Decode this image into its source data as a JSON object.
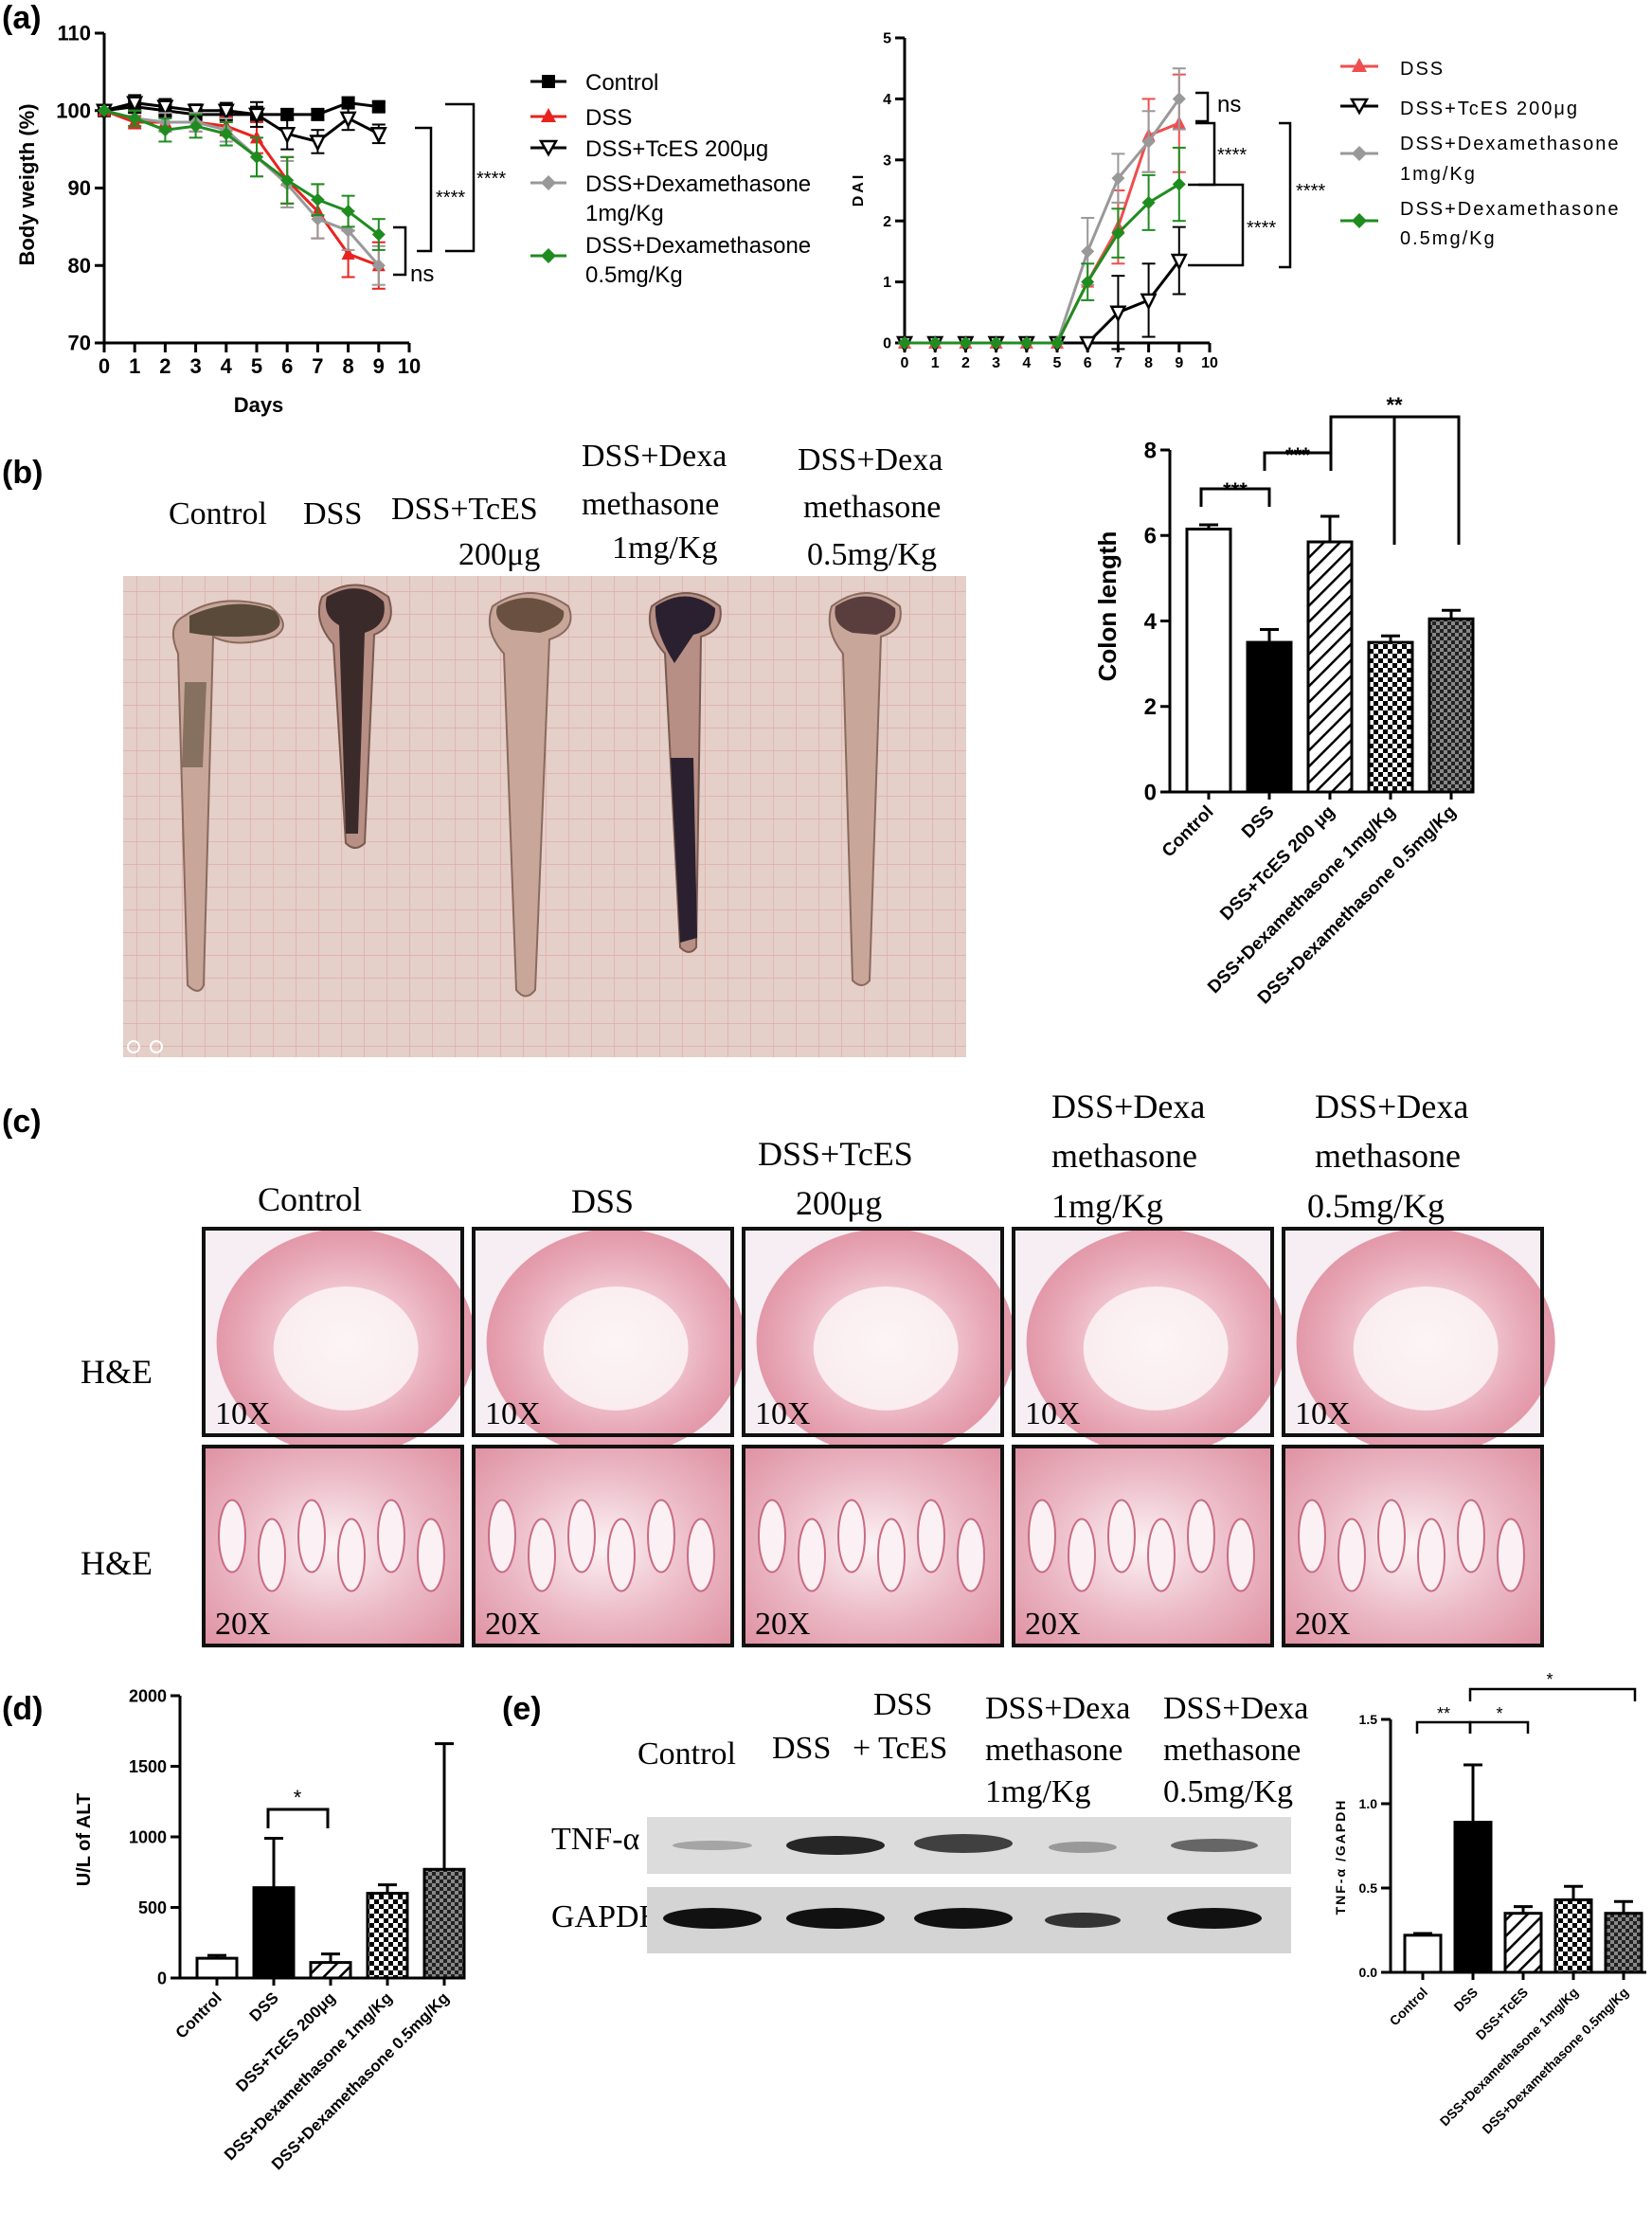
{
  "panels": {
    "a": "(a)",
    "b": "(b)",
    "c": "(c)",
    "d": "(d)",
    "e": "(e)"
  },
  "bw": {
    "ylabel": "Body weigth (%)",
    "xlabel": "Days",
    "yticks": [
      "70",
      "80",
      "90",
      "100",
      "110"
    ],
    "xticks": [
      "0",
      "1",
      "2",
      "3",
      "4",
      "5",
      "6",
      "7",
      "8",
      "9",
      "10"
    ],
    "legend": [
      "Control",
      "DSS",
      "DSS+TcES 200μg",
      "DSS+Dexamethasone",
      "1mg/Kg",
      "DSS+Dexamethasone",
      "0.5mg/Kg"
    ],
    "sig": [
      "****",
      "****",
      "ns"
    ]
  },
  "dai": {
    "ylabel": "DAI",
    "yticks": [
      "0",
      "1",
      "2",
      "3",
      "4",
      "5"
    ],
    "xticks": [
      "0",
      "1",
      "2",
      "3",
      "4",
      "5",
      "6",
      "7",
      "8",
      "9",
      "10"
    ],
    "legend": [
      "DSS",
      "DSS+TcES 200μg",
      "DSS+Dexamethasone",
      "1mg/Kg",
      "DSS+Dexamethasone",
      "0.5mg/Kg"
    ],
    "sig": [
      "ns",
      "****",
      "****",
      "****"
    ]
  },
  "photo_labels": {
    "b": [
      "Control",
      "DSS",
      "DSS+TcES",
      "200μg",
      "DSS+Dexa",
      "methasone",
      "1mg/Kg",
      "DSS+Dexa",
      "methasone",
      "0.5mg/Kg"
    ],
    "c": [
      "Control",
      "DSS",
      "DSS+TcES",
      "200μg",
      "DSS+Dexa",
      "methasone",
      "1mg/Kg",
      "DSS+Dexa",
      "methasone",
      "0.5mg/Kg"
    ],
    "he": "H&E",
    "mag10": "10X",
    "mag20": "20X",
    "e": [
      "Control",
      "DSS",
      "DSS",
      "+ TcES",
      "DSS+Dexa",
      "methasone",
      "1mg/Kg",
      "DSS+Dexa",
      "methasone",
      "0.5mg/Kg"
    ],
    "tnf": "TNF-α",
    "gapdh": "GAPDH"
  },
  "colon": {
    "ylabel": "Colon length",
    "yticks": [
      "0",
      "2",
      "4",
      "6",
      "8"
    ],
    "categories": [
      "Control",
      "DSS",
      "DSS+TcES 200 μg",
      "DSS+Dexamethasone 1mg/Kg",
      "DSS+Dexamethasone 0.5mg/Kg"
    ],
    "sig": [
      "***",
      "***",
      "**"
    ]
  },
  "alt": {
    "ylabel": "U/L of ALT",
    "yticks": [
      "0",
      "500",
      "1000",
      "1500",
      "2000"
    ],
    "categories": [
      "Control",
      "DSS",
      "DSS+TcES 200μg",
      "DSS+Dexamethasone 1mg/Kg",
      "DSS+Dexamethasone 0.5mg/Kg"
    ],
    "sig": [
      "*"
    ]
  },
  "tnf": {
    "ylabel": "TNF-α /GAPDH",
    "yticks": [
      "0.0",
      "0.5",
      "1.0",
      "1.5"
    ],
    "categories": [
      "Control",
      "DSS",
      "DSS+TcES",
      "DSS+Dexamethasone 1mg/Kg",
      "DSS+Dexamethasone 0.5mg/Kg"
    ],
    "sig": [
      "**",
      "*",
      "*"
    ]
  },
  "colors": {
    "dss": "#e8231f",
    "dexa_high": "#999999",
    "dexa_low": "#1f8c1f",
    "control": "#000000"
  },
  "chart_data": [
    {
      "type": "line",
      "x": [
        0,
        1,
        2,
        3,
        4,
        5,
        6,
        7,
        8,
        9
      ],
      "series": [
        {
          "name": "Control",
          "values": [
            100,
            100.5,
            100,
            99.5,
            99.5,
            99.5,
            99.5,
            99.5,
            101,
            100.5
          ]
        },
        {
          "name": "DSS",
          "values": [
            100,
            98.5,
            98.5,
            98.5,
            98,
            96.5,
            91,
            87,
            81.5,
            80
          ]
        },
        {
          "name": "DSS+TcES 200μg",
          "values": [
            100,
            101,
            100.5,
            100,
            100,
            99.5,
            97,
            96,
            99,
            97
          ]
        },
        {
          "name": "DSS+Dexamethasone 1mg/Kg",
          "values": [
            100,
            99,
            98.5,
            98.5,
            97.5,
            94,
            90.5,
            86,
            84.5,
            80
          ]
        },
        {
          "name": "DSS+Dexamethasone 0.5mg/Kg",
          "values": [
            100,
            99,
            97.5,
            98,
            97,
            94,
            91,
            88.5,
            87,
            84
          ]
        }
      ],
      "xlabel": "Days",
      "ylabel": "Body weigth (%)",
      "ylim": [
        70,
        110
      ],
      "xlim": [
        0,
        10
      ]
    },
    {
      "type": "line",
      "x": [
        0,
        1,
        2,
        3,
        4,
        5,
        6,
        7,
        8,
        9
      ],
      "series": [
        {
          "name": "DSS",
          "values": [
            0,
            0,
            0,
            0,
            0,
            0,
            1,
            1.9,
            3.4,
            3.6
          ]
        },
        {
          "name": "DSS+TcES 200μg",
          "values": [
            0,
            0,
            0,
            0,
            0,
            0,
            0,
            0.5,
            0.7,
            1.35
          ]
        },
        {
          "name": "DSS+Dexamethasone 1mg/Kg",
          "values": [
            0,
            0,
            0,
            0,
            0,
            0,
            1.5,
            2.7,
            3.3,
            4
          ]
        },
        {
          "name": "DSS+Dexamethasone 0.5mg/Kg",
          "values": [
            0,
            0,
            0,
            0,
            0,
            0,
            1,
            1.8,
            2.3,
            2.6
          ]
        }
      ],
      "ylabel": "DAI",
      "ylim": [
        0,
        5
      ],
      "xlim": [
        0,
        10
      ]
    },
    {
      "type": "bar",
      "categories": [
        "Control",
        "DSS",
        "DSS+TcES 200 μg",
        "DSS+Dexamethasone 1mg/Kg",
        "DSS+Dexamethasone 0.5mg/Kg"
      ],
      "values": [
        6.15,
        3.5,
        5.85,
        3.5,
        4.05
      ],
      "ylabel": "Colon length",
      "ylim": [
        0,
        8
      ]
    },
    {
      "type": "bar",
      "categories": [
        "Control",
        "DSS",
        "DSS+TcES 200μg",
        "DSS+Dexamethasone 1mg/Kg",
        "DSS+Dexamethasone 0.5mg/Kg"
      ],
      "values": [
        140,
        640,
        110,
        600,
        770
      ],
      "ylabel": "U/L of ALT",
      "ylim": [
        0,
        2000
      ]
    },
    {
      "type": "bar",
      "categories": [
        "Control",
        "DSS",
        "DSS+TcES",
        "DSS+Dexamethasone 1mg/Kg",
        "DSS+Dexamethasone 0.5mg/Kg"
      ],
      "values": [
        0.22,
        0.89,
        0.35,
        0.43,
        0.35
      ],
      "ylabel": "TNF-α /GAPDH",
      "ylim": [
        0,
        1.5
      ]
    }
  ]
}
